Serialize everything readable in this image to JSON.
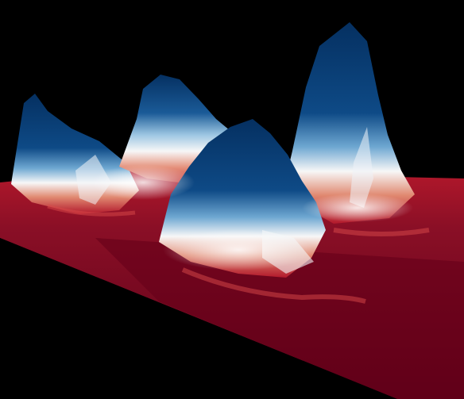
{
  "scene": {
    "kind": "3d-surface-render",
    "background": "#000000",
    "colormap": {
      "name": "red-white-blue",
      "low": "#67001f",
      "mid_low": "#d6604d",
      "mid": "#f7f7f7",
      "mid_high": "#4393c3",
      "high": "#053061"
    },
    "peaks": [
      {
        "name": "far-left-ridge"
      },
      {
        "name": "back-center-peak"
      },
      {
        "name": "front-center-mound"
      },
      {
        "name": "right-tall-peak"
      }
    ],
    "base_plane": "flat-low-valued"
  }
}
